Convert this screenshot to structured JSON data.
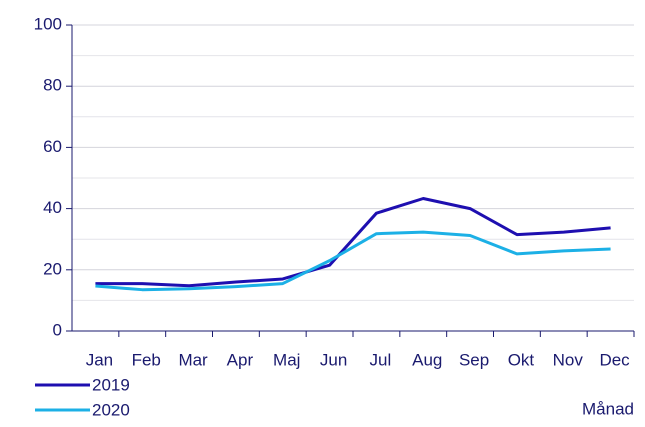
{
  "chart_data": {
    "type": "line",
    "x_label": "Månad",
    "categories": [
      "Jan",
      "Feb",
      "Mar",
      "Apr",
      "Maj",
      "Jun",
      "Jul",
      "Aug",
      "Sep",
      "Okt",
      "Nov",
      "Dec"
    ],
    "series": [
      {
        "name": "2019",
        "color": "#1e0fb0",
        "values": [
          15.5,
          15.5,
          14.8,
          16,
          17,
          21.5,
          38.5,
          43.3,
          40,
          31.5,
          32.3,
          33.7
        ]
      },
      {
        "name": "2020",
        "color": "#1cb0e6",
        "values": [
          14.7,
          13.5,
          13.8,
          14.5,
          15.5,
          23,
          31.8,
          32.3,
          31.2,
          25.2,
          26.2,
          26.8
        ]
      }
    ],
    "ylim": [
      0,
      100
    ],
    "yticks": [
      0,
      20,
      40,
      60,
      80,
      100
    ],
    "minor_yticks": [
      10,
      30,
      50,
      70,
      90
    ],
    "grid": true,
    "legend": "bottom-left"
  }
}
